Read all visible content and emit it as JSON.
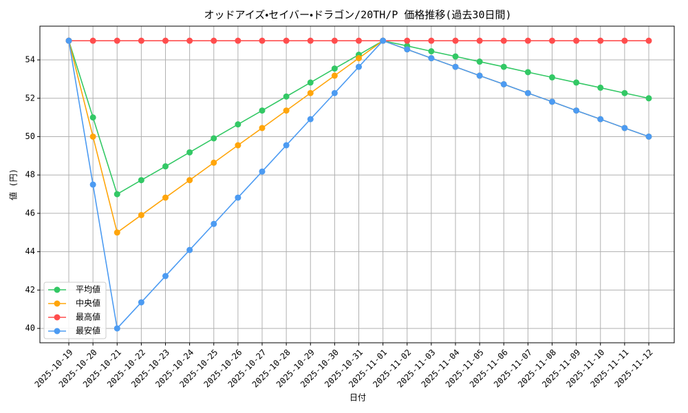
{
  "chart_data": {
    "type": "line",
    "title": "オッドアイズ・セイバー・ドラゴン/20TH/P 価格推移(過去30日間)",
    "x_label": "日付",
    "y_label": "値 (円)",
    "x": [
      "2025-10-19",
      "2025-10-20",
      "2025-10-21",
      "2025-10-22",
      "2025-10-23",
      "2025-10-24",
      "2025-10-25",
      "2025-10-26",
      "2025-10-27",
      "2025-10-28",
      "2025-10-29",
      "2025-10-30",
      "2025-10-31",
      "2025-11-01",
      "2025-11-02",
      "2025-11-03",
      "2025-11-04",
      "2025-11-05",
      "2025-11-06",
      "2025-11-07",
      "2025-11-08",
      "2025-11-09",
      "2025-11-10",
      "2025-11-11",
      "2025-11-12"
    ],
    "series": [
      {
        "name": "平均値",
        "color": "#33c865",
        "values": [
          55,
          51,
          47,
          47.73,
          48.45,
          49.18,
          49.91,
          50.64,
          51.36,
          52.09,
          52.82,
          53.55,
          54.27,
          55,
          54.73,
          54.45,
          54.18,
          53.91,
          53.64,
          53.36,
          53.09,
          52.82,
          52.55,
          52.27,
          52
        ]
      },
      {
        "name": "中央値",
        "color": "#ffa50a",
        "values": [
          55,
          50,
          45,
          45.91,
          46.82,
          47.73,
          48.64,
          49.55,
          50.45,
          51.36,
          52.27,
          53.18,
          54.09,
          55,
          54.55,
          54.09,
          53.64,
          53.18,
          52.73,
          52.27,
          51.82,
          51.36,
          50.91,
          50.45,
          50
        ]
      },
      {
        "name": "最高値",
        "color": "#ff4d4d",
        "values": [
          55,
          55,
          55,
          55,
          55,
          55,
          55,
          55,
          55,
          55,
          55,
          55,
          55,
          55,
          55,
          55,
          55,
          55,
          55,
          55,
          55,
          55,
          55,
          55,
          55
        ]
      },
      {
        "name": "最安値",
        "color": "#4c9bf2",
        "values": [
          55,
          47.5,
          40,
          41.36,
          42.73,
          44.09,
          45.45,
          46.82,
          48.18,
          49.55,
          50.91,
          52.27,
          53.64,
          55,
          54.55,
          54.09,
          53.64,
          53.18,
          52.73,
          52.27,
          51.82,
          51.36,
          50.91,
          50.45,
          50
        ]
      }
    ],
    "ylim": [
      39.25,
      55.76
    ],
    "yticks": [
      40,
      42,
      44,
      46,
      48,
      50,
      52,
      54
    ],
    "grid": true,
    "legend": "lower left"
  }
}
